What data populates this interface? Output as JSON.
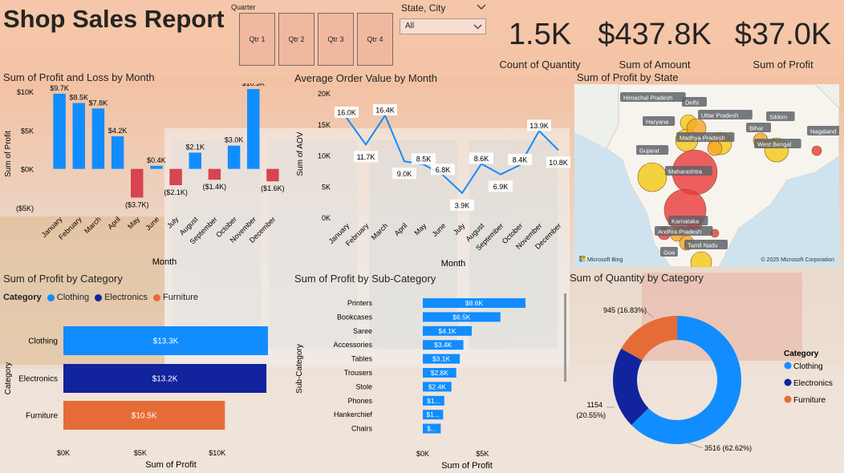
{
  "title": "Shop Sales Report",
  "slicers": {
    "quarter": {
      "label": "Quarter",
      "options": [
        "Qtr 1",
        "Qtr 2",
        "Qtr 3",
        "Qtr 4"
      ]
    },
    "state_city": {
      "label": "State, City",
      "selected": "All"
    }
  },
  "kpis": [
    {
      "value": "1.5K",
      "label": "Count of Quantity"
    },
    {
      "value": "$437.8K",
      "label": "Sum of Amount"
    },
    {
      "value": "$37.0K",
      "label": "Sum of Profit"
    }
  ],
  "colors": {
    "blue": "#118DFF",
    "navy": "#12239E",
    "orange": "#E66C37",
    "negative": "#D64550"
  },
  "chart_data": [
    {
      "type": "bar",
      "title": "Sum of Profit and Loss by Month",
      "xlabel": "Month",
      "ylabel": "Sum of Profit",
      "categories": [
        "January",
        "February",
        "March",
        "April",
        "May",
        "June",
        "July",
        "August",
        "September",
        "October",
        "November",
        "December"
      ],
      "values": [
        9.7,
        8.5,
        7.8,
        4.2,
        -3.7,
        0.4,
        -2.1,
        2.1,
        -1.4,
        3.0,
        10.3,
        -1.6
      ],
      "data_labels": [
        "$9.7K",
        "$8.5K",
        "$7.8K",
        "$4.2K",
        "($3.7K)",
        "$0.4K",
        "($2.1K)",
        "$2.1K",
        "($1.4K)",
        "$3.0K",
        "$10.3K",
        "($1.6K)"
      ],
      "yticks": [
        "($5K)",
        "$0K",
        "$5K",
        "$10K"
      ],
      "ylim": [
        -5,
        10
      ]
    },
    {
      "type": "line",
      "title": "Average Order Value by Month",
      "xlabel": "Month",
      "ylabel": "Sum of AOV",
      "categories": [
        "January",
        "February",
        "March",
        "April",
        "May",
        "June",
        "July",
        "August",
        "September",
        "October",
        "November",
        "December"
      ],
      "values": [
        16.0,
        11.7,
        16.4,
        9.0,
        8.5,
        6.8,
        3.9,
        8.6,
        6.9,
        8.4,
        13.9,
        10.8
      ],
      "data_labels": [
        "16.0K",
        "11.7K",
        "16.4K",
        "9.0K",
        "8.5K",
        "6.8K",
        "3.9K",
        "8.6K",
        "6.9K",
        "8.4K",
        "13.9K",
        "10.8K"
      ],
      "yticks": [
        "0K",
        "5K",
        "10K",
        "15K",
        "20K"
      ],
      "ylim": [
        0,
        20
      ]
    },
    {
      "type": "map",
      "title": "Sum of Profit by State",
      "places": [
        "Himachal Pradesh",
        "Delhi",
        "Uttar Pradesh",
        "Haryana",
        "Sikkim",
        "Bihar",
        "Madhya Pradesh",
        "Nagaland",
        "West Bengal",
        "Gujarat",
        "Maharashtra",
        "Karnataka",
        "Andhra Pradesh",
        "Tamil Nadu",
        "Goa"
      ],
      "attribution_left": "Microsoft Bing",
      "attribution_right": "© 2025 Microsoft Corporation"
    },
    {
      "type": "bar",
      "title": "Sum of Profit by Category",
      "xlabel": "Sum of Profit",
      "ylabel": "Category",
      "legend_title": "Category",
      "categories": [
        "Clothing",
        "Electronics",
        "Furniture"
      ],
      "values": [
        13.3,
        13.2,
        10.5
      ],
      "data_labels": [
        "$13.3K",
        "$13.2K",
        "$10.5K"
      ],
      "xticks": [
        "$0K",
        "$5K",
        "$10K"
      ],
      "xlim": [
        0,
        13.3
      ]
    },
    {
      "type": "bar",
      "title": "Sum of Profit by Sub-Category",
      "xlabel": "Sum of Profit",
      "ylabel": "Sub-Category",
      "categories": [
        "Printers",
        "Bookcases",
        "Saree",
        "Accessories",
        "Tables",
        "Trousers",
        "Stole",
        "Phones",
        "Hankerchief",
        "Chairs"
      ],
      "values": [
        8.6,
        6.5,
        4.1,
        3.4,
        3.1,
        2.8,
        2.4,
        1.8,
        1.7,
        1.5
      ],
      "data_labels": [
        "$8.6K",
        "$6.5K",
        "$4.1K",
        "$3.4K",
        "$3.1K",
        "$2.8K",
        "$2.4K",
        "$1...",
        "$1...",
        "$..."
      ],
      "xticks": [
        "$0K",
        "$5K"
      ],
      "xlim": [
        0,
        8.6
      ]
    },
    {
      "type": "pie",
      "title": "Sum of Quantity by Category",
      "legend_title": "Category",
      "categories": [
        "Clothing",
        "Electronics",
        "Furniture"
      ],
      "values": [
        3516,
        1154,
        945
      ],
      "data_labels": [
        "3516 (62.62%)",
        "1154 (20.55%)",
        "945 (16.83%)"
      ]
    }
  ]
}
